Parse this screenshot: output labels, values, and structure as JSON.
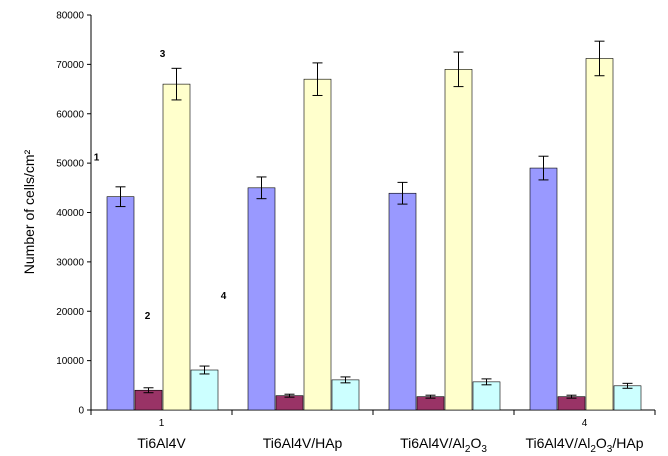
{
  "chart_data": {
    "type": "bar",
    "ylabel": "Number of cells/cm²",
    "ylim": [
      0,
      80000
    ],
    "yticks": [
      0,
      10000,
      20000,
      30000,
      40000,
      50000,
      60000,
      70000,
      80000
    ],
    "grid": false,
    "categories": [
      {
        "base": "Ti6Al4V",
        "suffix": "",
        "tick_number": "1"
      },
      {
        "base": "Ti6Al4V/HAp",
        "suffix": "",
        "tick_number": ""
      },
      {
        "base": "Ti6Al4V/Al",
        "sub1": "2",
        "mid": "O",
        "sub2": "3",
        "suffix": "",
        "tick_number": ""
      },
      {
        "base": "Ti6Al4V/Al",
        "sub1": "2",
        "mid": "O",
        "sub2": "3",
        "suffix": "/HAp",
        "tick_number": "4"
      }
    ],
    "series": [
      {
        "color": "#9999ff",
        "values": [
          43200,
          45000,
          43900,
          49000
        ],
        "errors": [
          2000,
          2200,
          2200,
          2400
        ]
      },
      {
        "color": "#993366",
        "values": [
          4000,
          2900,
          2700,
          2700
        ],
        "errors": [
          500,
          300,
          300,
          300
        ]
      },
      {
        "color": "#ffffcc",
        "values": [
          66000,
          67000,
          69000,
          71200
        ],
        "errors": [
          3200,
          3300,
          3500,
          3500
        ]
      },
      {
        "color": "#ccffff",
        "values": [
          8100,
          6100,
          5700,
          4900
        ],
        "errors": [
          800,
          600,
          600,
          500
        ]
      }
    ],
    "annotations": [
      {
        "text": "1",
        "series": 0
      },
      {
        "text": "2",
        "series": 1
      },
      {
        "text": "3",
        "series": 2
      },
      {
        "text": "4",
        "series": 3
      }
    ]
  }
}
